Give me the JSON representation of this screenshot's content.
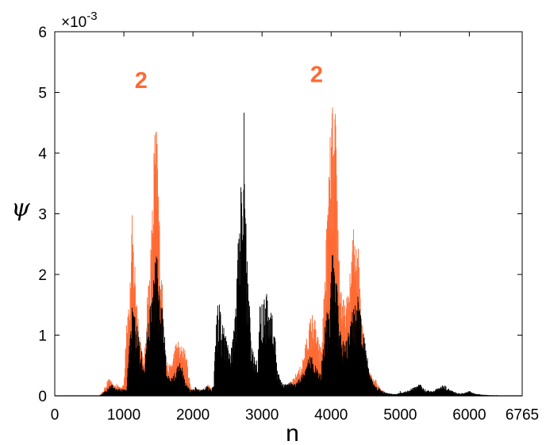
{
  "chart_data": {
    "type": "area",
    "xlabel": "n",
    "ylabel": "ψ",
    "y_multiplier_label": {
      "base": "×10",
      "exponent": "-3"
    },
    "xlim": [
      0,
      6765
    ],
    "ylim": [
      0,
      0.006
    ],
    "x_ticks": [
      0,
      1000,
      2000,
      3000,
      4000,
      5000,
      6000,
      6765
    ],
    "y_ticks": [
      0,
      1,
      2,
      3,
      4,
      5,
      6
    ],
    "grid": false,
    "annotations": [
      {
        "text": "2",
        "x": 1480,
        "y": 0.0052,
        "color": "#ff6a33"
      },
      {
        "text": "2",
        "x": 4020,
        "y": 0.0053,
        "color": "#ff6a33"
      }
    ],
    "series": [
      {
        "color": "#ff6a33",
        "envelope_x": [
          640,
          700,
          760,
          800,
          840,
          900,
          960,
          1000,
          1040,
          1080,
          1100,
          1120,
          1140,
          1160,
          1180,
          1200,
          1220,
          1240,
          1260,
          1280,
          1300,
          1340,
          1380,
          1400,
          1420,
          1440,
          1460,
          1480,
          1500,
          1520,
          1540,
          1560,
          1580,
          1620,
          1660,
          1700,
          1740,
          1780,
          1820,
          1860,
          1900,
          1960,
          2000,
          2040,
          2100,
          2160,
          2220,
          2300,
          3400,
          3460,
          3500,
          3540,
          3580,
          3620,
          3660,
          3700,
          3740,
          3780,
          3820,
          3860,
          3900,
          3940,
          3960,
          3980,
          4000,
          4020,
          4040,
          4060,
          4080,
          4100,
          4120,
          4160,
          4200,
          4240,
          4280,
          4320,
          4360,
          4400,
          4440,
          4480,
          4520,
          4560,
          4600,
          4640,
          4680,
          4720,
          4760,
          4800
        ],
        "envelope_y": [
          0.0,
          8e-05,
          0.00025,
          0.0003,
          0.00018,
          0.0002,
          0.00015,
          0.0002,
          0.0015,
          0.0016,
          0.0022,
          0.003,
          0.0026,
          0.0023,
          0.0019,
          0.0015,
          0.0012,
          0.001,
          0.0008,
          0.0006,
          0.0007,
          0.0018,
          0.0022,
          0.0028,
          0.0034,
          0.0045,
          0.0044,
          0.0046,
          0.0036,
          0.0028,
          0.0022,
          0.0018,
          0.0009,
          0.0006,
          0.0005,
          0.0006,
          0.00085,
          0.00095,
          0.0008,
          0.0009,
          0.0007,
          0.0002,
          0.0001,
          0.00015,
          0.0001,
          0.00012,
          0.0002,
          0.0001,
          0.0002,
          0.0003,
          0.0004,
          0.00045,
          0.0006,
          0.0008,
          0.0011,
          0.0013,
          0.0014,
          0.0012,
          0.0009,
          0.0008,
          0.0018,
          0.003,
          0.0035,
          0.0042,
          0.0045,
          0.0049,
          0.0042,
          0.0048,
          0.0039,
          0.0031,
          0.0023,
          0.0017,
          0.0015,
          0.0017,
          0.0021,
          0.0028,
          0.003,
          0.0024,
          0.0016,
          0.0009,
          0.0006,
          0.0004,
          0.0003,
          0.0003,
          0.0002,
          0.0001,
          0.0001,
          0.0
        ]
      },
      {
        "color": "#000000",
        "envelope_x": [
          640,
          700,
          760,
          820,
          880,
          960,
          1040,
          1080,
          1100,
          1120,
          1160,
          1200,
          1240,
          1280,
          1300,
          1340,
          1380,
          1420,
          1460,
          1500,
          1540,
          1580,
          1620,
          1660,
          1700,
          1740,
          1780,
          1820,
          1860,
          1900,
          1960,
          2000,
          2040,
          2080,
          2140,
          2200,
          2260,
          2300,
          2340,
          2380,
          2420,
          2460,
          2500,
          2540,
          2580,
          2620,
          2640,
          2660,
          2680,
          2700,
          2720,
          2740,
          2760,
          2780,
          2800,
          2820,
          2840,
          2860,
          2880,
          2900,
          2940,
          2980,
          3020,
          3060,
          3100,
          3140,
          3180,
          3220,
          3260,
          3300,
          3360,
          3420,
          3480,
          3540,
          3600,
          3660,
          3700,
          3740,
          3780,
          3820,
          3860,
          3900,
          3940,
          3980,
          4020,
          4060,
          4100,
          4140,
          4180,
          4220,
          4260,
          4300,
          4340,
          4380,
          4420,
          4460,
          4500,
          4560,
          4620,
          4680,
          4720,
          4800,
          4900,
          5000,
          5100,
          5200,
          5260,
          5300,
          5360,
          5400,
          5460,
          5520,
          5580,
          5640,
          5700,
          5760,
          5820,
          5880,
          5940,
          6000,
          6040,
          6080,
          6140,
          6200,
          6300,
          6400,
          6500,
          6600,
          6765
        ],
        "envelope_y": [
          0.0,
          5e-05,
          0.00012,
          0.0002,
          0.00012,
          0.00012,
          0.0001,
          0.001,
          0.0012,
          0.0015,
          0.0013,
          0.0011,
          0.0009,
          0.0007,
          0.0005,
          0.0012,
          0.0016,
          0.0018,
          0.0024,
          0.0022,
          0.0016,
          0.0013,
          0.0004,
          0.0003,
          0.0003,
          0.0004,
          0.0005,
          0.0006,
          0.0004,
          0.0002,
          0.0001,
          0.00012,
          0.00015,
          0.0001,
          0.00012,
          0.00018,
          0.00012,
          0.0002,
          0.0014,
          0.0016,
          0.0013,
          0.0011,
          0.0009,
          0.0008,
          0.00095,
          0.0015,
          0.0022,
          0.0027,
          0.0028,
          0.0047,
          0.0038,
          0.0047,
          0.0031,
          0.0025,
          0.0021,
          0.0015,
          0.0009,
          0.0008,
          0.0007,
          0.0006,
          0.0007,
          0.0018,
          0.0016,
          0.0018,
          0.0015,
          0.0014,
          0.0011,
          0.0005,
          0.0003,
          0.0002,
          0.0002,
          0.00025,
          0.0002,
          0.0003,
          0.0004,
          0.0006,
          0.0007,
          0.0006,
          0.0005,
          0.0004,
          0.0005,
          0.0012,
          0.0014,
          0.0018,
          0.0024,
          0.0021,
          0.0016,
          0.0011,
          0.0009,
          0.0009,
          0.0011,
          0.0014,
          0.0016,
          0.0017,
          0.0014,
          0.0012,
          0.0008,
          0.0004,
          0.0002,
          0.00015,
          0.0001,
          5e-05,
          3e-05,
          5e-05,
          8e-05,
          0.00015,
          0.0002,
          0.00018,
          0.00012,
          0.0001,
          8e-05,
          0.00012,
          0.00016,
          0.00018,
          0.00012,
          8e-05,
          5e-05,
          4e-05,
          6e-05,
          8e-05,
          6e-05,
          4e-05,
          3e-05,
          2e-05,
          1e-05,
          1e-05,
          0.0,
          0.0,
          0.0
        ]
      }
    ]
  }
}
